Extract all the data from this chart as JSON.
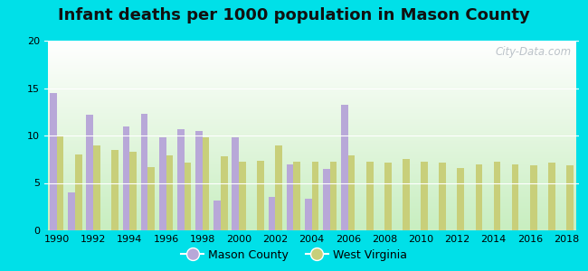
{
  "title": "Infant deaths per 1000 population in Mason County",
  "years": [
    1990,
    1991,
    1992,
    1993,
    1994,
    1995,
    1996,
    1997,
    1998,
    1999,
    2000,
    2001,
    2002,
    2003,
    2004,
    2005,
    2006,
    2007,
    2008,
    2009,
    2010,
    2011,
    2012,
    2013,
    2014,
    2015,
    2016,
    2017,
    2018
  ],
  "mason_county": [
    14.5,
    4.0,
    12.2,
    null,
    11.0,
    12.3,
    9.8,
    10.7,
    10.5,
    3.1,
    9.8,
    null,
    3.5,
    7.0,
    3.3,
    6.5,
    13.2,
    null,
    null,
    null,
    null,
    null,
    null,
    null,
    null,
    null,
    null,
    null,
    null
  ],
  "west_virginia": [
    10.0,
    8.0,
    9.0,
    8.5,
    8.3,
    6.7,
    7.9,
    7.1,
    9.8,
    7.8,
    7.2,
    7.3,
    9.0,
    7.2,
    7.2,
    7.2,
    7.9,
    7.2,
    7.1,
    7.5,
    7.2,
    7.1,
    6.6,
    7.0,
    7.2,
    7.0,
    6.9,
    7.1,
    6.9
  ],
  "mason_color": "#b8a8d8",
  "wv_color": "#c8cf7a",
  "background_top": "#ffffff",
  "background_bottom": "#c8eec0",
  "outer_background": "#00e0e8",
  "ylim": [
    0,
    20
  ],
  "yticks": [
    0,
    5,
    10,
    15,
    20
  ],
  "title_fontsize": 13,
  "watermark": "City-Data.com"
}
